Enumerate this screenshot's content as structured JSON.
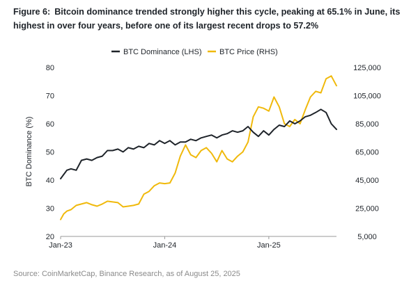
{
  "title": {
    "figure": "Figure 6:",
    "text": "Bitcoin dominance trended strongly higher this cycle, peaking at 65.1% in June, its highest in over four years, before one of its largest recent drops to 57.2%"
  },
  "source": "Source: CoinMarketCap, Binance Research, as of August 25, 2025",
  "colors": {
    "dominance": "#1e2329",
    "price": "#f0b90b",
    "axis": "#999999"
  },
  "chart_data": {
    "type": "line",
    "title": "Bitcoin dominance trended strongly higher this cycle, peaking at 65.1% in June, its highest in over four years, before one of its largest recent drops to 57.2%",
    "xlabel": "",
    "ylabel": "BTC Dominance (%)",
    "x_ticks": [
      "Jan-23",
      "Jan-24",
      "Jan-25"
    ],
    "x_range": [
      2023.0,
      2025.65
    ],
    "ylim": [
      20,
      80
    ],
    "y_ticks": [
      "20",
      "30",
      "40",
      "50",
      "60",
      "70",
      "80"
    ],
    "y2lim": [
      5000,
      125000
    ],
    "y2_ticks": [
      "5,000",
      "25,000",
      "45,000",
      "65,000",
      "85,000",
      "105,000",
      "125,000"
    ],
    "legend": [
      "BTC Dominance (LHS)",
      "BTC Price (RHS)"
    ],
    "series": [
      {
        "name": "BTC Dominance (LHS)",
        "axis": "left",
        "x": [
          2023.0,
          2023.03,
          2023.06,
          2023.1,
          2023.15,
          2023.2,
          2023.25,
          2023.3,
          2023.35,
          2023.4,
          2023.45,
          2023.5,
          2023.55,
          2023.6,
          2023.65,
          2023.7,
          2023.75,
          2023.8,
          2023.85,
          2023.9,
          2023.95,
          2024.0,
          2024.05,
          2024.1,
          2024.15,
          2024.2,
          2024.25,
          2024.3,
          2024.35,
          2024.4,
          2024.45,
          2024.5,
          2024.55,
          2024.6,
          2024.65,
          2024.7,
          2024.75,
          2024.8,
          2024.85,
          2024.9,
          2024.95,
          2025.0,
          2025.05,
          2025.1,
          2025.15,
          2025.2,
          2025.25,
          2025.3,
          2025.35,
          2025.4,
          2025.45,
          2025.5,
          2025.55,
          2025.6,
          2025.65
        ],
        "values": [
          40.5,
          42.0,
          43.5,
          44.0,
          43.5,
          47.0,
          47.5,
          47.0,
          48.0,
          48.5,
          50.5,
          50.5,
          51.0,
          50.0,
          51.5,
          51.0,
          52.0,
          51.5,
          53.0,
          52.5,
          54.0,
          53.0,
          54.0,
          52.5,
          53.5,
          53.5,
          54.5,
          54.0,
          55.0,
          55.5,
          56.0,
          55.0,
          56.0,
          56.5,
          57.5,
          57.0,
          57.5,
          59.0,
          57.0,
          55.5,
          57.5,
          56.0,
          58.0,
          59.5,
          59.0,
          61.0,
          60.0,
          61.0,
          62.5,
          63.0,
          64.0,
          65.1,
          64.0,
          60.0,
          58.0
        ]
      },
      {
        "name": "BTC Price (RHS)",
        "axis": "right",
        "x": [
          2023.0,
          2023.03,
          2023.06,
          2023.1,
          2023.15,
          2023.2,
          2023.25,
          2023.3,
          2023.35,
          2023.4,
          2023.45,
          2023.5,
          2023.55,
          2023.6,
          2023.65,
          2023.7,
          2023.75,
          2023.8,
          2023.85,
          2023.9,
          2023.95,
          2024.0,
          2024.05,
          2024.1,
          2024.15,
          2024.2,
          2024.25,
          2024.3,
          2024.35,
          2024.4,
          2024.45,
          2024.5,
          2024.55,
          2024.6,
          2024.65,
          2024.7,
          2024.75,
          2024.8,
          2024.85,
          2024.9,
          2024.95,
          2025.0,
          2025.05,
          2025.1,
          2025.15,
          2025.2,
          2025.25,
          2025.3,
          2025.35,
          2025.4,
          2025.45,
          2025.5,
          2025.55,
          2025.6,
          2025.65
        ],
        "values": [
          17000,
          21000,
          23000,
          24000,
          27000,
          28000,
          29000,
          27500,
          26500,
          28000,
          30000,
          29500,
          29000,
          26000,
          26500,
          27000,
          28000,
          35000,
          37000,
          41000,
          43000,
          42500,
          43000,
          50000,
          62000,
          70000,
          63000,
          61000,
          66000,
          68000,
          64000,
          58000,
          66000,
          60000,
          58000,
          62000,
          65000,
          72000,
          90000,
          97000,
          96000,
          94000,
          104000,
          97000,
          85000,
          83000,
          88000,
          85000,
          95000,
          104000,
          108000,
          107000,
          117000,
          119000,
          112000
        ]
      }
    ]
  }
}
